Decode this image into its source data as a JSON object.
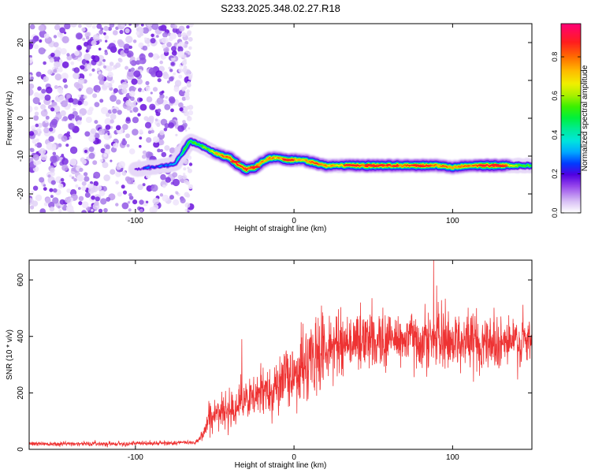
{
  "title": "S233.2025.348.02.27.R18",
  "colors": {
    "line": "#ee3333",
    "axis": "#000000",
    "background": "#ffffff"
  },
  "chart_data": [
    {
      "type": "heatmap",
      "title": "S233.2025.348.02.27.R18",
      "xlabel": "Height of straight line (km)",
      "ylabel": "Frequency (Hz)",
      "xlim": [
        -167,
        150
      ],
      "ylim": [
        -25,
        25
      ],
      "xticks": [
        -100,
        0,
        100
      ],
      "yticks": [
        20,
        10,
        0,
        -10,
        -20
      ],
      "xtick_labels": [
        "-100",
        "0",
        "100"
      ],
      "ytick_labels": [
        "20",
        "10",
        "0",
        "-10",
        "-20"
      ],
      "colorbar": {
        "label": "Normalized spectral amplitude",
        "range": [
          0,
          0.97
        ],
        "ticks": [
          0,
          0.2,
          0.4,
          0.6,
          0.8
        ],
        "tick_labels": [
          "0.0",
          "0.2",
          "0.4",
          "0.6",
          "0.8"
        ]
      },
      "noise_region_x": [
        -167,
        -68
      ],
      "ridge": {
        "x": [
          -100,
          -90,
          -80,
          -75,
          -70,
          -66,
          -60,
          -55,
          -50,
          -45,
          -40,
          -35,
          -30,
          -25,
          -20,
          -15,
          -10,
          -5,
          0,
          5,
          10,
          15,
          20,
          30,
          40,
          50,
          60,
          70,
          80,
          90,
          100,
          110,
          120,
          130,
          140,
          150
        ],
        "y": [
          -13.5,
          -13,
          -12.5,
          -12,
          -9,
          -6,
          -7,
          -8,
          -9,
          -10,
          -10.5,
          -12.5,
          -13.5,
          -13,
          -11.5,
          -10.5,
          -10.5,
          -11,
          -11,
          -11,
          -11.5,
          -12,
          -12.5,
          -12.5,
          -12.5,
          -12.5,
          -12.5,
          -12.5,
          -12.5,
          -12.5,
          -13,
          -12.5,
          -12.5,
          -12.5,
          -12.5,
          -12.5
        ],
        "amp": [
          0.2,
          0.25,
          0.3,
          0.3,
          0.45,
          0.55,
          0.5,
          0.6,
          0.7,
          0.8,
          0.85,
          0.85,
          0.9,
          0.85,
          0.75,
          0.8,
          0.75,
          0.9,
          0.8,
          0.7,
          0.8,
          0.85,
          0.75,
          0.75,
          0.85,
          0.85,
          0.85,
          0.85,
          0.85,
          0.8,
          0.8,
          0.8,
          0.95,
          0.85,
          0.6,
          0.5
        ]
      }
    },
    {
      "type": "line",
      "xlabel": "Height of straight line (km)",
      "ylabel": "SNR (10 * v/v)",
      "xlim": [
        -167,
        150
      ],
      "ylim": [
        0,
        670
      ],
      "xticks": [
        -100,
        0,
        100
      ],
      "yticks": [
        0,
        200,
        400,
        600
      ],
      "xtick_labels": [
        "-100",
        "0",
        "100"
      ],
      "ytick_labels": [
        "0",
        "200",
        "400",
        "600"
      ],
      "envelope": {
        "x": [
          -167,
          -140,
          -110,
          -80,
          -62,
          -57,
          -54,
          -50,
          -45,
          -40,
          -30,
          -20,
          -10,
          0,
          10,
          18,
          30,
          50,
          70,
          90,
          110,
          130,
          150
        ],
        "y": [
          20,
          20,
          20,
          22,
          25,
          55,
          110,
          120,
          130,
          150,
          170,
          200,
          230,
          270,
          310,
          350,
          380,
          390,
          390,
          390,
          385,
          380,
          375
        ]
      },
      "spikes": [
        {
          "x": -50,
          "y": 175
        },
        {
          "x": -33,
          "y": 390
        },
        {
          "x": -28,
          "y": 250
        },
        {
          "x": 27,
          "y": 470
        },
        {
          "x": 42,
          "y": 520
        },
        {
          "x": 88,
          "y": 670
        },
        {
          "x": 90,
          "y": 580
        },
        {
          "x": 115,
          "y": 500
        }
      ]
    }
  ]
}
